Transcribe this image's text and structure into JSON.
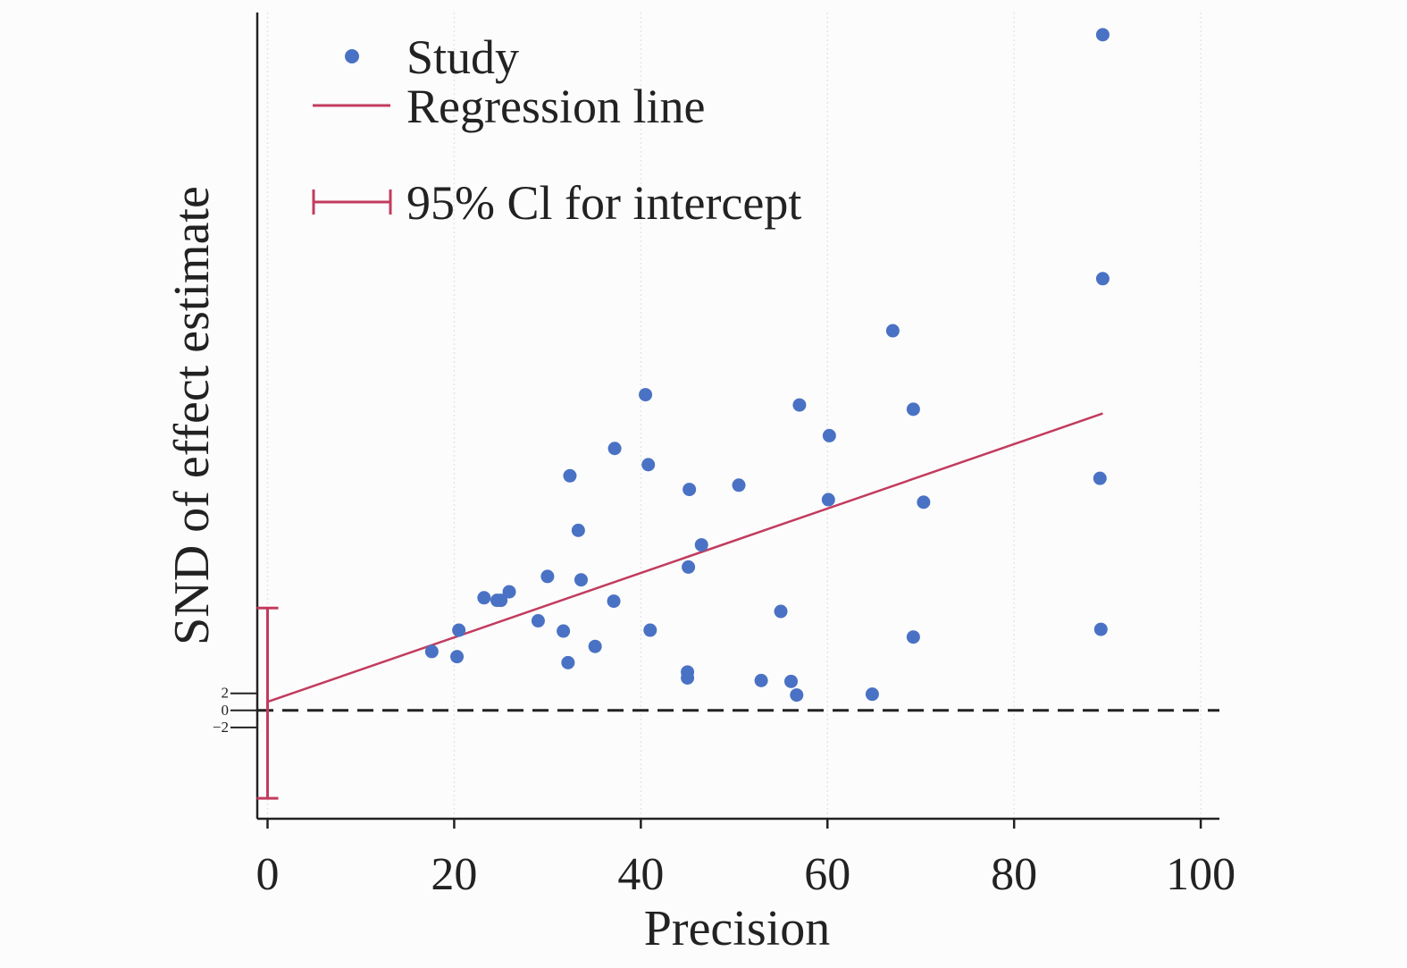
{
  "chart_data": {
    "type": "scatter",
    "xlabel": "Precision",
    "ylabel": "SND of effect estimate",
    "xlim": [
      -1.1,
      102
    ],
    "ylim": [
      -12.7,
      81.8
    ],
    "xticks": [
      0,
      20,
      40,
      60,
      80,
      100
    ],
    "yticks": [
      2,
      0,
      -2
    ],
    "ytick_labels": [
      "2",
      "0",
      "−2"
    ],
    "grid": "vertical dotted lines at x ticks",
    "legend": {
      "placement": "top-left",
      "entries": [
        "Study",
        "Regression line",
        "95% Cl for intercept"
      ]
    },
    "series": [
      {
        "name": "Study",
        "marker": "dot",
        "color": "#4a72c4",
        "points": [
          [
            89.5,
            79.2
          ],
          [
            89.5,
            50.6
          ],
          [
            67.0,
            44.5
          ],
          [
            40.5,
            37.0
          ],
          [
            57.0,
            35.8
          ],
          [
            69.2,
            35.3
          ],
          [
            60.2,
            32.2
          ],
          [
            37.2,
            30.7
          ],
          [
            40.8,
            28.8
          ],
          [
            32.4,
            27.5
          ],
          [
            50.5,
            26.4
          ],
          [
            45.2,
            25.9
          ],
          [
            89.2,
            27.2
          ],
          [
            60.1,
            24.7
          ],
          [
            70.3,
            24.4
          ],
          [
            33.3,
            21.1
          ],
          [
            46.5,
            19.4
          ],
          [
            45.1,
            16.8
          ],
          [
            30.0,
            15.7
          ],
          [
            33.6,
            15.3
          ],
          [
            25.9,
            13.9
          ],
          [
            23.2,
            13.2
          ],
          [
            24.6,
            12.9
          ],
          [
            25.0,
            12.9
          ],
          [
            37.1,
            12.8
          ],
          [
            55.0,
            11.6
          ],
          [
            29.0,
            10.5
          ],
          [
            20.5,
            9.4
          ],
          [
            31.7,
            9.3
          ],
          [
            41.0,
            9.4
          ],
          [
            89.3,
            9.5
          ],
          [
            69.2,
            8.6
          ],
          [
            35.1,
            7.5
          ],
          [
            17.6,
            6.9
          ],
          [
            20.3,
            6.3
          ],
          [
            32.2,
            5.6
          ],
          [
            45.0,
            4.5
          ],
          [
            45.0,
            3.8
          ],
          [
            52.9,
            3.5
          ],
          [
            56.1,
            3.4
          ],
          [
            56.7,
            1.8
          ],
          [
            64.8,
            1.9
          ]
        ]
      },
      {
        "name": "Regression line",
        "type": "line",
        "color": "#c23b5e",
        "x": [
          0,
          89.5
        ],
        "y": [
          1.0,
          34.8
        ]
      },
      {
        "name": "95% Cl for intercept",
        "type": "errorbar",
        "color": "#c23b5e",
        "x": 0,
        "y_low": -10.3,
        "y_high": 12.0
      }
    ],
    "reference_line": {
      "y": 0,
      "style": "dashed",
      "color": "#222222"
    }
  }
}
